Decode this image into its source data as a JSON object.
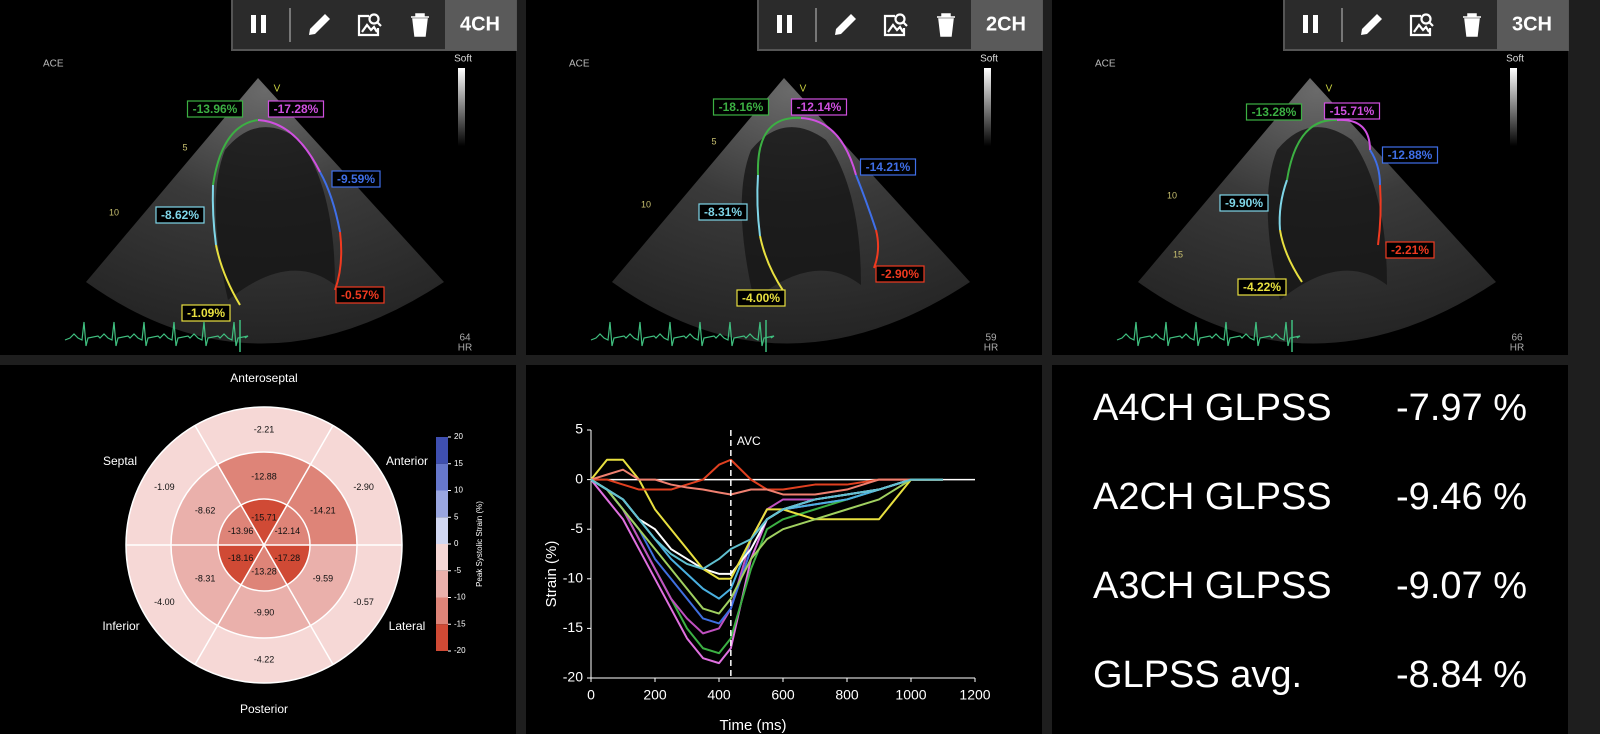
{
  "views": [
    {
      "label": "4CH",
      "vendor": "ACE",
      "gain_label": "Soft",
      "hr_value": "64",
      "hr_label": "HR",
      "depth_marks": [
        "5",
        "10"
      ],
      "apex_marker": "V",
      "segments": [
        {
          "label": "-1.09%",
          "color": "#e8e040"
        },
        {
          "label": "-8.62%",
          "color": "#7fd6e8"
        },
        {
          "label": "-13.96%",
          "color": "#3cb043"
        },
        {
          "label": "-17.28%",
          "color": "#d050e0"
        },
        {
          "label": "-9.59%",
          "color": "#3f6fe8"
        },
        {
          "label": "-0.57%",
          "color": "#f03a20"
        }
      ]
    },
    {
      "label": "2CH",
      "vendor": "ACE",
      "gain_label": "Soft",
      "hr_value": "59",
      "hr_label": "HR",
      "depth_marks": [
        "5",
        "10"
      ],
      "apex_marker": "V",
      "segments": [
        {
          "label": "-4.00%",
          "color": "#e8e040"
        },
        {
          "label": "-8.31%",
          "color": "#7fd6e8"
        },
        {
          "label": "-18.16%",
          "color": "#3cb043"
        },
        {
          "label": "-12.14%",
          "color": "#d050e0"
        },
        {
          "label": "-14.21%",
          "color": "#3f6fe8"
        },
        {
          "label": "-2.90%",
          "color": "#f03a20"
        }
      ]
    },
    {
      "label": "3CH",
      "vendor": "ACE",
      "gain_label": "Soft",
      "hr_value": "66",
      "hr_label": "HR",
      "depth_marks": [
        "10",
        "15"
      ],
      "apex_marker": "V",
      "segments": [
        {
          "label": "-4.22%",
          "color": "#e8e040"
        },
        {
          "label": "-9.90%",
          "color": "#7fd6e8"
        },
        {
          "label": "-13.28%",
          "color": "#3cb043"
        },
        {
          "label": "-15.71%",
          "color": "#d050e0"
        },
        {
          "label": "-12.88%",
          "color": "#3f6fe8"
        },
        {
          "label": "-2.21%",
          "color": "#f03a20"
        }
      ]
    }
  ],
  "bullseye": {
    "directions": [
      "Anteroseptal",
      "Anterior",
      "Lateral",
      "Posterior",
      "Inferior",
      "Septal"
    ],
    "rings": [
      {
        "values": [
          -2.21,
          -2.9,
          -0.57,
          -4.22,
          -4.0,
          -1.09
        ],
        "value_labels": [
          "-2.21",
          "-2.90",
          "-0.57",
          "-4.22",
          "-4.00",
          "-1.09"
        ]
      },
      {
        "values": [
          -12.88,
          -14.21,
          -9.59,
          -9.9,
          -8.31,
          -8.62
        ],
        "value_labels": [
          "-12.88",
          "-14.21",
          "-9.59",
          "-9.90",
          "-8.31",
          "-8.62"
        ]
      },
      {
        "values": [
          -15.71,
          -12.14,
          -17.28,
          -13.28,
          -18.16,
          -13.96
        ],
        "value_labels": [
          "-15.71",
          "-12.14",
          "-17.28",
          "-13.28",
          "-18.16",
          "-13.96"
        ]
      }
    ],
    "colorbar": {
      "label": "Peak Systolic Strain (%)",
      "ticks": [
        20,
        15,
        10,
        5,
        0,
        -5,
        -10,
        -15,
        -20
      ],
      "colors": [
        "#3f4fb0",
        "#6677cc",
        "#9aa6e0",
        "#d2d8f2",
        "#f6d8d6",
        "#eab0ab",
        "#de8478",
        "#d04a35"
      ]
    }
  },
  "chart_data": {
    "type": "line",
    "ylabel": "Strain (%)",
    "xlabel": "Time (ms)",
    "xlim": [
      0,
      1200
    ],
    "ylim": [
      -20,
      5
    ],
    "xticks": [
      0,
      200,
      400,
      600,
      800,
      1000,
      1200
    ],
    "yticks": [
      5,
      0,
      -5,
      -10,
      -15,
      -20
    ],
    "annotations": [
      {
        "text": "AVC",
        "x": 437
      }
    ],
    "x": [
      0,
      50,
      100,
      150,
      200,
      250,
      300,
      350,
      400,
      437,
      500,
      550,
      600,
      700,
      800,
      900,
      1000,
      1100
    ],
    "series": [
      {
        "color": "#e070e0",
        "values": [
          0,
          -2,
          -4,
          -7,
          -10,
          -13,
          -16,
          -18,
          -18.5,
          -17,
          -8,
          -4,
          -3,
          -2.5,
          -2,
          -1,
          0,
          0
        ]
      },
      {
        "color": "#3cb043",
        "values": [
          0,
          -1,
          -3,
          -6,
          -9,
          -12,
          -15,
          -17,
          -17.5,
          -16,
          -9,
          -5,
          -4,
          -3,
          -2,
          -1,
          0,
          0
        ]
      },
      {
        "color": "#c050c0",
        "values": [
          0,
          -1,
          -3,
          -6,
          -9,
          -12,
          -14,
          -15.5,
          -15,
          -13,
          -6,
          -3,
          -2,
          -2,
          -1.5,
          -1,
          0,
          0
        ]
      },
      {
        "color": "#3f6fe0",
        "values": [
          0,
          -1,
          -3,
          -5,
          -8,
          -10,
          -12,
          -14,
          -14.5,
          -13,
          -7,
          -4,
          -3,
          -2,
          -1.5,
          -1,
          0,
          0
        ]
      },
      {
        "color": "#4ab0e0",
        "values": [
          0,
          -1,
          -2,
          -4,
          -6,
          -8,
          -9.5,
          -11,
          -12,
          -11,
          -6,
          -4,
          -3,
          -2.5,
          -2,
          -1,
          0,
          0
        ]
      },
      {
        "color": "#ffffff",
        "values": [
          0,
          -1,
          -2,
          -4,
          -5,
          -7,
          -8,
          -9,
          -9.5,
          -9.5,
          -7,
          -4,
          -3,
          -2,
          -1.5,
          -1,
          0,
          0
        ]
      },
      {
        "color": "#e8e040",
        "values": [
          0,
          2,
          2,
          0,
          -3,
          -5,
          -7,
          -9,
          -10,
          -10,
          -6,
          -3,
          -3,
          -4,
          -4,
          -4,
          0,
          0
        ]
      },
      {
        "color": "#e04020",
        "values": [
          0,
          0,
          -0.5,
          -1,
          -1,
          -1,
          -0.5,
          0,
          1.5,
          2,
          0,
          -1,
          -1,
          -0.5,
          -0.5,
          0,
          0,
          0
        ]
      },
      {
        "color": "#f08070",
        "values": [
          0,
          0.5,
          1,
          0,
          0,
          -0.5,
          -0.8,
          -1,
          -1.3,
          -1.5,
          -1,
          -1,
          -1.5,
          -1.5,
          -1,
          0,
          0,
          0
        ]
      },
      {
        "color": "#a0d060",
        "values": [
          0,
          -1,
          -3,
          -5,
          -7,
          -9,
          -11,
          -13,
          -13.5,
          -12,
          -8,
          -6,
          -5,
          -4,
          -3,
          -2,
          0,
          0
        ]
      },
      {
        "color": "#60c0d0",
        "values": [
          0,
          -1,
          -2,
          -4,
          -6,
          -7.5,
          -8.5,
          -9,
          -8,
          -7,
          -6,
          -4,
          -3,
          -2,
          -1.5,
          -1,
          0,
          0
        ]
      }
    ]
  },
  "summary": {
    "rows": [
      {
        "name": "A4CH GLPSS",
        "value": "-7.97 %"
      },
      {
        "name": "A2CH GLPSS",
        "value": "-9.46 %"
      },
      {
        "name": "A3CH GLPSS",
        "value": "-9.07 %"
      },
      {
        "name": "GLPSS avg.",
        "value": "-8.84 %"
      }
    ]
  }
}
